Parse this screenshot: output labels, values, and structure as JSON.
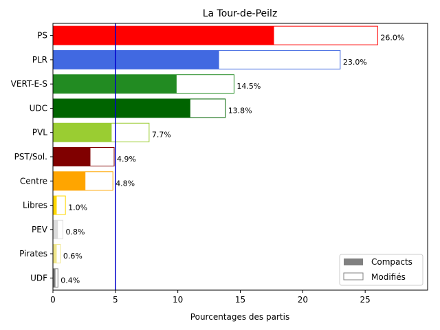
{
  "chart_data": {
    "type": "bar",
    "orientation": "horizontal",
    "stacked_overlay": true,
    "title": "La Tour-de-Peilz",
    "xlabel": "Pourcentages des partis",
    "ylabel": "",
    "xlim": [
      0,
      30
    ],
    "xticks": [
      0,
      5,
      10,
      15,
      20,
      25
    ],
    "threshold_line": {
      "value": 5,
      "color": "#0000cc"
    },
    "categories": [
      "PS",
      "PLR",
      "VERT-E-S",
      "UDC",
      "PVL",
      "PST/Sol.",
      "Centre",
      "Libres",
      "PEV",
      "Pirates",
      "UDF"
    ],
    "colors": [
      "#ff0000",
      "#4169e1",
      "#228b22",
      "#006400",
      "#9acd32",
      "#800000",
      "#ffa500",
      "#ffd700",
      "#dcdcdc",
      "#f0e68c",
      "#808080"
    ],
    "series": [
      {
        "name": "Compacts",
        "values": [
          17.7,
          13.3,
          9.9,
          11.0,
          4.7,
          3.0,
          2.6,
          0.3,
          0.4,
          0.3,
          0.2
        ]
      },
      {
        "name": "Modifiés",
        "values": [
          26.0,
          23.0,
          14.5,
          13.8,
          7.7,
          4.9,
          4.8,
          1.0,
          0.8,
          0.6,
          0.4
        ]
      }
    ],
    "total_labels": [
      "26.0%",
      "23.0%",
      "14.5%",
      "13.8%",
      "7.7%",
      "4.9%",
      "4.8%",
      "1.0%",
      "0.8%",
      "0.6%",
      "0.4%"
    ],
    "legend": {
      "position": "lower right",
      "items": [
        "Compacts",
        "Modifiés"
      ],
      "compact_color": "#808080",
      "modified_edge": "#808080"
    }
  }
}
